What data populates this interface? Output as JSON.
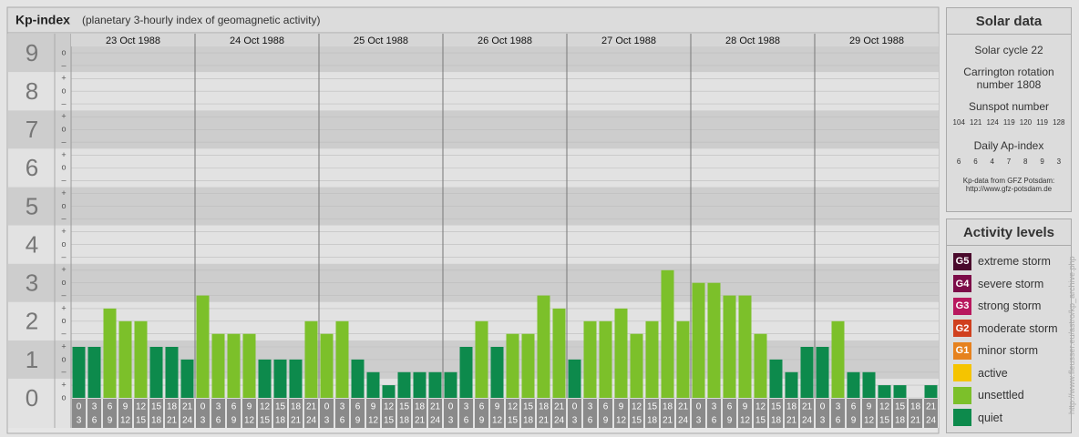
{
  "header": {
    "title": "Kp-index",
    "subtitle": "(planetary 3-hourly index of geomagnetic activity)"
  },
  "chart_data": {
    "type": "bar",
    "ylim": [
      0,
      9.5
    ],
    "yticks": [
      0,
      1,
      2,
      3,
      4,
      5,
      6,
      7,
      8,
      9
    ],
    "yticks_minor": [
      {
        "value": 9,
        "label": "o"
      },
      {
        "value": 8.67,
        "label": "–"
      },
      {
        "value": 8.33,
        "label": "+"
      },
      {
        "value": 8,
        "label": "o"
      },
      {
        "value": 7.67,
        "label": "–"
      },
      {
        "value": 7.33,
        "label": "+"
      },
      {
        "value": 7,
        "label": "o"
      },
      {
        "value": 6.67,
        "label": "–"
      },
      {
        "value": 6.33,
        "label": "+"
      },
      {
        "value": 6,
        "label": "o"
      },
      {
        "value": 5.67,
        "label": "–"
      },
      {
        "value": 5.33,
        "label": "+"
      },
      {
        "value": 5,
        "label": "o"
      },
      {
        "value": 4.67,
        "label": "–"
      },
      {
        "value": 4.33,
        "label": "+"
      },
      {
        "value": 4,
        "label": "o"
      },
      {
        "value": 3.67,
        "label": "–"
      },
      {
        "value": 3.33,
        "label": "+"
      },
      {
        "value": 3,
        "label": "o"
      },
      {
        "value": 2.67,
        "label": "–"
      },
      {
        "value": 2.33,
        "label": "+"
      },
      {
        "value": 2,
        "label": "o"
      },
      {
        "value": 1.67,
        "label": "–"
      },
      {
        "value": 1.33,
        "label": "+"
      },
      {
        "value": 1,
        "label": "o"
      },
      {
        "value": 0.67,
        "label": "–"
      },
      {
        "value": 0.33,
        "label": "+"
      },
      {
        "value": 0,
        "label": "o"
      }
    ],
    "grid": true,
    "intervals": [
      {
        "start": "0",
        "end": "3"
      },
      {
        "start": "3",
        "end": "6"
      },
      {
        "start": "6",
        "end": "9"
      },
      {
        "start": "9",
        "end": "12"
      },
      {
        "start": "12",
        "end": "15"
      },
      {
        "start": "15",
        "end": "18"
      },
      {
        "start": "18",
        "end": "21"
      },
      {
        "start": "21",
        "end": "24"
      }
    ],
    "days": [
      {
        "date": "23 Oct 1988",
        "values": [
          1.33,
          1.33,
          2.33,
          2,
          2,
          1.33,
          1.33,
          1
        ]
      },
      {
        "date": "24 Oct 1988",
        "values": [
          2.67,
          1.67,
          1.67,
          1.67,
          1,
          1,
          1,
          2
        ]
      },
      {
        "date": "25 Oct 1988",
        "values": [
          1.67,
          2,
          1,
          0.67,
          0.33,
          0.67,
          0.67,
          0.67
        ]
      },
      {
        "date": "26 Oct 1988",
        "values": [
          0.67,
          1.33,
          2,
          1.33,
          1.67,
          1.67,
          2.67,
          2.33
        ]
      },
      {
        "date": "27 Oct 1988",
        "values": [
          1,
          2,
          2,
          2.33,
          1.67,
          2,
          3.33,
          2
        ]
      },
      {
        "date": "28 Oct 1988",
        "values": [
          3,
          3,
          2.67,
          2.67,
          1.67,
          1,
          0.67,
          1.33
        ]
      },
      {
        "date": "29 Oct 1988",
        "values": [
          1.33,
          2,
          0.67,
          0.67,
          0.33,
          0.33,
          0,
          0.33
        ]
      }
    ],
    "levels": [
      {
        "badge": "G5",
        "name": "extreme storm",
        "color": "#4a0a2c",
        "kp_min": 8.67
      },
      {
        "badge": "G4",
        "name": "severe storm",
        "color": "#7c0c48",
        "kp_min": 7.67
      },
      {
        "badge": "G3",
        "name": "strong storm",
        "color": "#b8185e",
        "kp_min": 6.67
      },
      {
        "badge": "G2",
        "name": "moderate storm",
        "color": "#d0401e",
        "kp_min": 5.67
      },
      {
        "badge": "G1",
        "name": "minor storm",
        "color": "#e6821e",
        "kp_min": 4.67
      },
      {
        "name": "active",
        "color": "#f5c400",
        "kp_min": 3.67
      },
      {
        "name": "unsettled",
        "color": "#7cc02a",
        "kp_min": 1.67
      },
      {
        "name": "quiet",
        "color": "#0d8a4c",
        "kp_min": 0
      }
    ]
  },
  "solar_data": {
    "title": "Solar data",
    "solar_cycle": "Solar cycle 22",
    "carrington": "Carrington rotation number 1808",
    "sunspot_title": "Sunspot number",
    "sunspot_numbers": [
      104,
      121,
      124,
      119,
      120,
      119,
      128
    ],
    "ap_title": "Daily Ap-index",
    "ap_values": [
      6,
      6,
      4,
      7,
      8,
      9,
      3
    ],
    "credit": "Kp-data from GFZ Potsdam:",
    "credit_url": "http://www.gfz-potsdam.de"
  },
  "activity_title": "Activity levels",
  "watermark": "http://www.fleusser.eu/astro/kp_archive.php"
}
